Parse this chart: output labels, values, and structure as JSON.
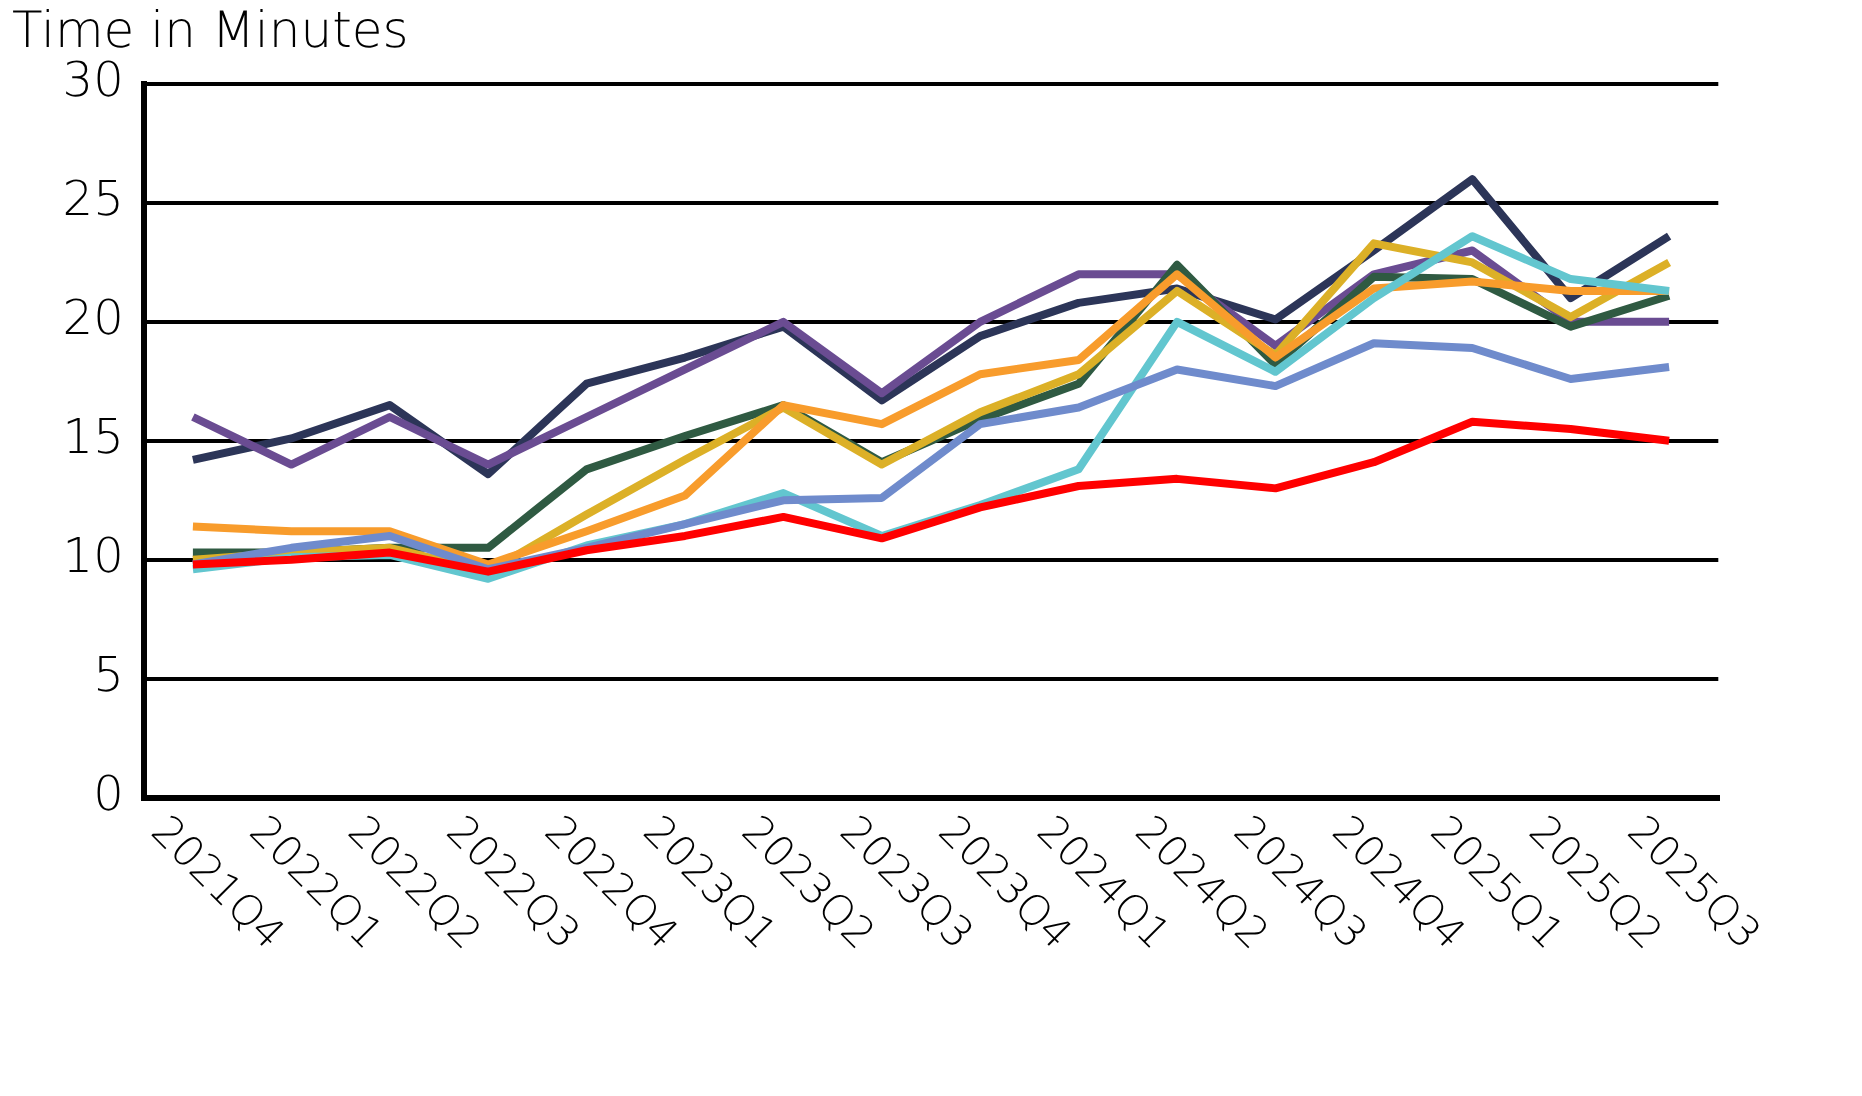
{
  "chart_data": {
    "type": "line",
    "title": "Time in Minutes",
    "categories": [
      "2021Q4",
      "2022Q1",
      "2022Q2",
      "2022Q3",
      "2022Q4",
      "2023Q1",
      "2023Q2",
      "2023Q3",
      "2023Q4",
      "2024Q1",
      "2024Q2",
      "2024Q3",
      "2024Q4",
      "2025Q1",
      "2025Q2",
      "2025Q3"
    ],
    "series": [
      {
        "color": "#ff0000",
        "values": [
          9.8,
          10.0,
          10.3,
          9.5,
          10.4,
          11.0,
          11.8,
          10.9,
          12.2,
          13.1,
          13.4,
          13.0,
          14.1,
          15.8,
          15.5,
          15.0
        ]
      },
      {
        "color": "#6f8bcc",
        "values": [
          9.8,
          10.5,
          11.0,
          9.6,
          10.5,
          11.5,
          12.5,
          12.6,
          15.7,
          16.4,
          18.0,
          17.3,
          19.1,
          18.9,
          17.6,
          18.1
        ]
      },
      {
        "color": "#62c6cf",
        "values": [
          9.6,
          10.1,
          10.2,
          9.2,
          10.6,
          11.5,
          12.8,
          11.0,
          12.3,
          13.8,
          20.0,
          17.9,
          21.0,
          23.6,
          21.8,
          21.3
        ]
      },
      {
        "color": "#f89c2c",
        "values": [
          11.4,
          11.2,
          11.2,
          9.8,
          11.2,
          12.7,
          16.5,
          15.7,
          17.8,
          18.4,
          22.0,
          18.5,
          21.4,
          21.7,
          21.3,
          21.3
        ]
      },
      {
        "color": "#dcb027",
        "values": [
          10.0,
          10.3,
          10.5,
          9.5,
          11.9,
          14.2,
          16.4,
          14.0,
          16.2,
          17.8,
          21.3,
          18.6,
          23.3,
          22.5,
          20.2,
          22.5
        ]
      },
      {
        "color": "#2f5a42",
        "values": [
          10.3,
          10.3,
          10.5,
          10.5,
          13.8,
          15.2,
          16.5,
          14.1,
          15.9,
          17.4,
          22.4,
          18.2,
          21.9,
          21.8,
          19.8,
          21.1
        ]
      },
      {
        "color": "#6a4c92",
        "values": [
          16.0,
          14.0,
          16.0,
          14.0,
          16.0,
          18.0,
          20.0,
          17.0,
          20.0,
          22.0,
          22.0,
          19.0,
          22.0,
          23.0,
          20.0,
          20.0
        ]
      },
      {
        "color": "#2c3558",
        "values": [
          14.2,
          15.1,
          16.5,
          13.6,
          17.4,
          18.5,
          19.8,
          16.7,
          19.4,
          20.8,
          21.4,
          20.1,
          23.0,
          26.0,
          21.0,
          23.6
        ]
      }
    ],
    "ylim": [
      0,
      30
    ],
    "yticks": [
      0,
      5,
      10,
      15,
      20,
      25,
      30
    ],
    "grid": "y",
    "legend": false,
    "marker": "none",
    "line_style": "solid"
  }
}
